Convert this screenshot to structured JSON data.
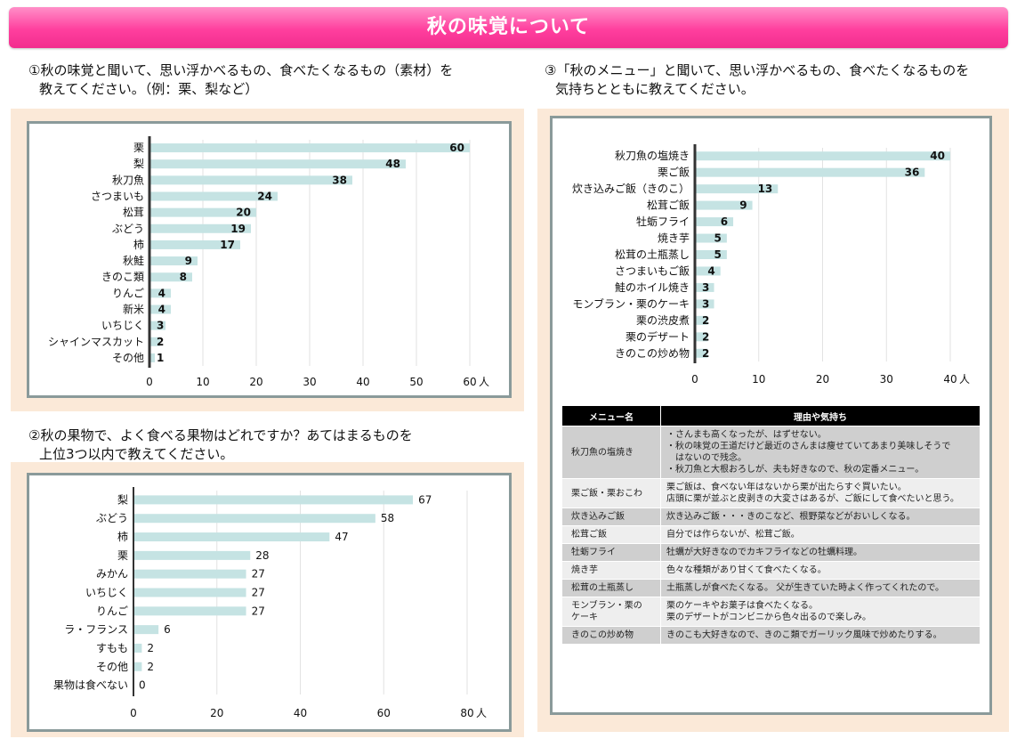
{
  "title": "秋の味覚について",
  "q1": {
    "line1": "①秋の味覚と聞いて、思い浮かべるもの、食べたくなるもの（素材）を",
    "line2": "教えてください。（例：栗、梨など）"
  },
  "q2": {
    "line1": "②秋の果物で、よく食べる果物はどれですか？あてはまるものを",
    "line2": "上位3つ以内で教えてください。"
  },
  "q3": {
    "line1": "③「秋のメニュー」と聞いて、思い浮かべるもの、食べたくなるものを",
    "line2": "気持ちとともに教えてください。"
  },
  "chart_data": [
    {
      "type": "bar",
      "orientation": "horizontal",
      "categories": [
        "栗",
        "梨",
        "秋刀魚",
        "さつまいも",
        "松茸",
        "ぶどう",
        "柿",
        "秋鮭",
        "きのこ類",
        "りんご",
        "新米",
        "いちじく",
        "シャインマスカット",
        "その他"
      ],
      "values": [
        60,
        48,
        38,
        24,
        20,
        19,
        17,
        9,
        8,
        4,
        4,
        3,
        2,
        1
      ],
      "xlim": [
        0,
        60
      ],
      "ticks": [
        0,
        10,
        20,
        30,
        40,
        50,
        60
      ],
      "unit": "人",
      "color": "#c5e3e3"
    },
    {
      "type": "bar",
      "orientation": "horizontal",
      "categories": [
        "梨",
        "ぶどう",
        "柿",
        "栗",
        "みかん",
        "いちじく",
        "りんご",
        "ラ・フランス",
        "すもも",
        "その他",
        "果物は食べない"
      ],
      "values": [
        67,
        58,
        47,
        28,
        27,
        27,
        27,
        6,
        2,
        2,
        0
      ],
      "xlim": [
        0,
        80
      ],
      "ticks": [
        0,
        20,
        40,
        60,
        80
      ],
      "unit": "人",
      "color": "#c5e3e3"
    },
    {
      "type": "bar",
      "orientation": "horizontal",
      "categories": [
        "秋刀魚の塩焼き",
        "栗ご飯",
        "炊き込みご飯（きのこ）",
        "松茸ご飯",
        "牡蛎フライ",
        "焼き芋",
        "松茸の土瓶蒸し",
        "さつまいもご飯",
        "鮭のホイル焼き",
        "モンブラン・栗のケーキ",
        "栗の渋皮煮",
        "栗のデザート",
        "きのこの炒め物"
      ],
      "values": [
        40,
        36,
        13,
        9,
        6,
        5,
        5,
        4,
        3,
        3,
        2,
        2,
        2
      ],
      "xlim": [
        0,
        40
      ],
      "ticks": [
        0,
        10,
        20,
        30,
        40
      ],
      "unit": "人",
      "color": "#c5e3e3"
    }
  ],
  "table": {
    "headers": [
      "メニュー名",
      "理由や気持ち"
    ],
    "rows": [
      {
        "menu": "秋刀魚の塩焼き",
        "reasons": [
          "・さんまも高くなったが、はずせない。",
          "・秋の味覚の王道だけど最近のさんまは痩せていてあまり美味しそうで",
          "　はないので残念。",
          "・秋刀魚と大根おろしが、夫も好きなので、秋の定番メニュー。"
        ]
      },
      {
        "menu": "栗ご飯・栗おこわ",
        "reasons": [
          "栗ご飯は、食べない年はないから栗が出たらすぐ買いたい。",
          "店頭に栗が並ぶと皮剥きの大変さはあるが、ご飯にして食べたいと思う。"
        ]
      },
      {
        "menu": "炊き込みご飯",
        "reasons": [
          "炊き込みご飯・・・きのこなど、根野菜などがおいしくなる。"
        ]
      },
      {
        "menu": "松茸ご飯",
        "reasons": [
          "自分では作らないが、松茸ご飯。"
        ]
      },
      {
        "menu": "牡蛎フライ",
        "reasons": [
          "牡蠣が大好きなのでカキフライなどの牡蠣料理。"
        ]
      },
      {
        "menu": "焼き芋",
        "reasons": [
          "色々な種類があり甘くて食べたくなる。"
        ]
      },
      {
        "menu": "松茸の土瓶蒸し",
        "reasons": [
          "土瓶蒸しが食べたくなる。 父が生きていた時よく作ってくれたので。"
        ]
      },
      {
        "menu": "モンブラン・栗の\nケーキ",
        "reasons": [
          "栗のケーキやお菓子は食べたくなる。",
          "栗のデザートがコンビニから色々出るので楽しみ。"
        ]
      },
      {
        "menu": "きのこの炒め物",
        "reasons": [
          "きのこも大好きなので、きのこ類でガーリック風味で炒めたりする。"
        ]
      }
    ]
  }
}
